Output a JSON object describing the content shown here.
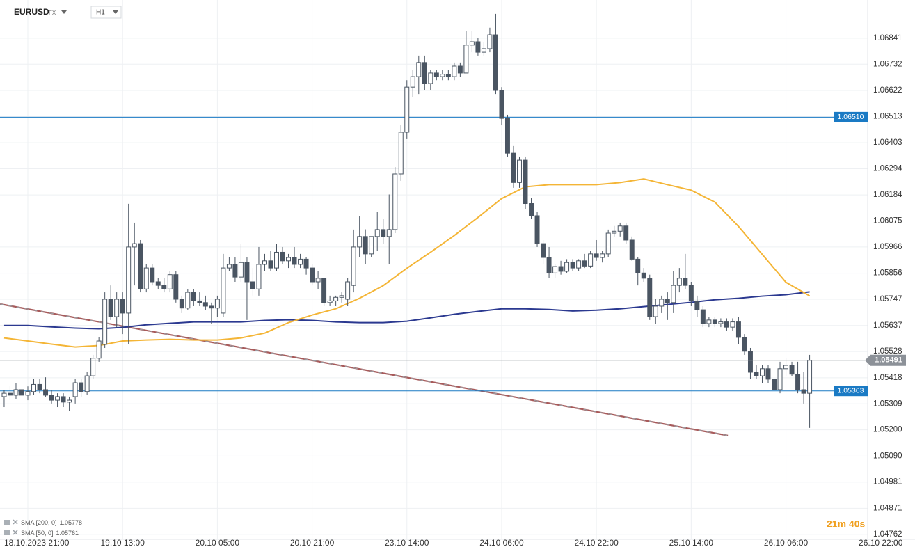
{
  "header": {
    "symbol": "EURUSD",
    "market": "FX",
    "timeframe": "H1"
  },
  "chart_data": {
    "type": "candlestick",
    "ohlc": [
      [
        1.05339,
        1.05368,
        1.05295,
        1.05353
      ],
      [
        1.05353,
        1.05382,
        1.05324,
        1.05345
      ],
      [
        1.05345,
        1.05397,
        1.0533,
        1.05368
      ],
      [
        1.05368,
        1.0539,
        1.0533,
        1.05345
      ],
      [
        1.05345,
        1.05382,
        1.05324,
        1.0536
      ],
      [
        1.0536,
        1.05412,
        1.05345,
        1.0539
      ],
      [
        1.0539,
        1.05412,
        1.05353,
        1.05368
      ],
      [
        1.05368,
        1.0542,
        1.05339,
        1.05345
      ],
      [
        1.05345,
        1.05368,
        1.0531,
        1.05324
      ],
      [
        1.05324,
        1.05353,
        1.05295,
        1.05339
      ],
      [
        1.05339,
        1.05353,
        1.05295,
        1.05316
      ],
      [
        1.05316,
        1.05339,
        1.0528,
        1.05324
      ],
      [
        1.05339,
        1.05412,
        1.0531,
        1.05397
      ],
      [
        1.05397,
        1.05412,
        1.05339,
        1.0536
      ],
      [
        1.0536,
        1.05441,
        1.05345,
        1.05426
      ],
      [
        1.05426,
        1.05514,
        1.05412,
        1.055
      ],
      [
        1.055,
        1.05587,
        1.05485,
        1.05572
      ],
      [
        1.05558,
        1.05776,
        1.05543,
        1.05747
      ],
      [
        1.05747,
        1.05805,
        1.0566,
        1.05674
      ],
      [
        1.05674,
        1.05776,
        1.0563,
        1.05747
      ],
      [
        1.05747,
        1.05776,
        1.05601,
        1.05689
      ],
      [
        1.05689,
        1.06147,
        1.05558,
        1.05966
      ],
      [
        1.05966,
        1.06068,
        1.05805,
        1.0598
      ],
      [
        1.0598,
        1.05995,
        1.05776,
        1.0579
      ],
      [
        1.0579,
        1.05893,
        1.05776,
        1.05878
      ],
      [
        1.05878,
        1.05893,
        1.05805,
        1.0582
      ],
      [
        1.0582,
        1.05835,
        1.0579,
        1.05805
      ],
      [
        1.05805,
        1.05835,
        1.05776,
        1.0579
      ],
      [
        1.0579,
        1.05864,
        1.05776,
        1.0585
      ],
      [
        1.0585,
        1.05864,
        1.05733,
        1.05747
      ],
      [
        1.05747,
        1.05762,
        1.05689,
        1.0571
      ],
      [
        1.0571,
        1.0579,
        1.05703,
        1.05776
      ],
      [
        1.05776,
        1.0579,
        1.05718,
        1.0574
      ],
      [
        1.0574,
        1.05776,
        1.05718,
        1.05733
      ],
      [
        1.05733,
        1.05762,
        1.05703,
        1.05718
      ],
      [
        1.05718,
        1.05733,
        1.05645,
        1.0571
      ],
      [
        1.0571,
        1.05762,
        1.05674,
        1.05747
      ],
      [
        1.05689,
        1.05937,
        1.05674,
        1.05878
      ],
      [
        1.05878,
        1.05922,
        1.05864,
        1.05893
      ],
      [
        1.05893,
        1.05922,
        1.0582,
        1.0584
      ],
      [
        1.0584,
        1.0598,
        1.0582,
        1.05901
      ],
      [
        1.05901,
        1.05922,
        1.0566,
        1.0582
      ],
      [
        1.0582,
        1.05878,
        1.05762,
        1.0579
      ],
      [
        1.0579,
        1.05966,
        1.05762,
        1.05893
      ],
      [
        1.05893,
        1.05937,
        1.05864,
        1.05908
      ],
      [
        1.05908,
        1.05951,
        1.05864,
        1.05878
      ],
      [
        1.05878,
        1.0598,
        1.05864,
        1.05944
      ],
      [
        1.05944,
        1.05966,
        1.05893,
        1.05908
      ],
      [
        1.05908,
        1.05937,
        1.05878,
        1.05922
      ],
      [
        1.05922,
        1.05966,
        1.05878,
        1.05893
      ],
      [
        1.05893,
        1.05937,
        1.05878,
        1.05915
      ],
      [
        1.05915,
        1.05922,
        1.0585,
        1.05878
      ],
      [
        1.05878,
        1.05893,
        1.05805,
        1.0582
      ],
      [
        1.0582,
        1.05864,
        1.0579,
        1.05835
      ],
      [
        1.05835,
        1.05835,
        1.05718,
        1.05733
      ],
      [
        1.05733,
        1.05762,
        1.05718,
        1.0574
      ],
      [
        1.0574,
        1.05762,
        1.05718,
        1.05755
      ],
      [
        1.05755,
        1.05776,
        1.05733,
        1.05762
      ],
      [
        1.05747,
        1.05835,
        1.05718,
        1.0582
      ],
      [
        1.05805,
        1.06039,
        1.05776,
        1.05966
      ],
      [
        1.05966,
        1.06097,
        1.05922,
        1.0601
      ],
      [
        1.0601,
        1.0604,
        1.05893,
        1.05937
      ],
      [
        1.05937,
        1.0601,
        1.05922,
        1.0601
      ],
      [
        1.0601,
        1.06112,
        1.05951,
        1.06039
      ],
      [
        1.06039,
        1.06083,
        1.0598,
        1.0601
      ],
      [
        1.0601,
        1.06186,
        1.05893,
        1.06039
      ],
      [
        1.06039,
        1.06301,
        1.06024,
        1.06272
      ],
      [
        1.06272,
        1.06476,
        1.06243,
        1.06447
      ],
      [
        1.06447,
        1.06665,
        1.06418,
        1.06636
      ],
      [
        1.06636,
        1.06709,
        1.06593,
        1.0668
      ],
      [
        1.0668,
        1.06768,
        1.06607,
        1.06739
      ],
      [
        1.06739,
        1.06768,
        1.06622,
        1.06651
      ],
      [
        1.06651,
        1.06709,
        1.06622,
        1.06695
      ],
      [
        1.06695,
        1.06709,
        1.06665,
        1.0668
      ],
      [
        1.0668,
        1.06709,
        1.06665,
        1.0669
      ],
      [
        1.0669,
        1.06709,
        1.06665,
        1.0668
      ],
      [
        1.0668,
        1.06739,
        1.06665,
        1.06724
      ],
      [
        1.06724,
        1.06739,
        1.0668,
        1.06695
      ],
      [
        1.06695,
        1.0687,
        1.06695,
        1.06812
      ],
      [
        1.06812,
        1.0687,
        1.06782,
        1.06826
      ],
      [
        1.06826,
        1.06841,
        1.06768,
        1.06782
      ],
      [
        1.06782,
        1.06826,
        1.06768,
        1.06797
      ],
      [
        1.06797,
        1.06885,
        1.06782,
        1.06855
      ],
      [
        1.06855,
        1.06943,
        1.06607,
        1.06622
      ],
      [
        1.06622,
        1.06636,
        1.06476,
        1.06505
      ],
      [
        1.06505,
        1.0652,
        1.06345,
        1.06359
      ],
      [
        1.06359,
        1.06389,
        1.06214,
        1.06236
      ],
      [
        1.06236,
        1.06345,
        1.06214,
        1.0633
      ],
      [
        1.0633,
        1.06345,
        1.06126,
        1.06148
      ],
      [
        1.06148,
        1.0617,
        1.06083,
        1.06097
      ],
      [
        1.06097,
        1.06112,
        1.05966,
        1.0598
      ],
      [
        1.0598,
        1.05995,
        1.05893,
        1.05922
      ],
      [
        1.05922,
        1.05966,
        1.05835,
        1.05857
      ],
      [
        1.05857,
        1.05893,
        1.05835,
        1.05884
      ],
      [
        1.05884,
        1.05908,
        1.0585,
        1.05864
      ],
      [
        1.05864,
        1.05915,
        1.05857,
        1.05901
      ],
      [
        1.05901,
        1.05915,
        1.05864,
        1.05878
      ],
      [
        1.05878,
        1.05915,
        1.05864,
        1.05908
      ],
      [
        1.05908,
        1.05937,
        1.05878,
        1.05886
      ],
      [
        1.05886,
        1.05951,
        1.05878,
        1.05937
      ],
      [
        1.05937,
        1.05995,
        1.05908,
        1.05922
      ],
      [
        1.05922,
        1.05951,
        1.05901,
        1.05937
      ],
      [
        1.05937,
        1.06039,
        1.05922,
        1.06024
      ],
      [
        1.06024,
        1.06054,
        1.0601,
        1.06032
      ],
      [
        1.06032,
        1.06068,
        1.0601,
        1.06054
      ],
      [
        1.06054,
        1.06068,
        1.0598,
        1.05995
      ],
      [
        1.05995,
        1.0601,
        1.05908,
        1.05915
      ],
      [
        1.05915,
        1.05922,
        1.05805,
        1.05857
      ],
      [
        1.05857,
        1.05878,
        1.0582,
        1.05835
      ],
      [
        1.05835,
        1.0585,
        1.0566,
        1.05674
      ],
      [
        1.05674,
        1.05747,
        1.05645,
        1.05718
      ],
      [
        1.05718,
        1.05762,
        1.05689,
        1.05747
      ],
      [
        1.05747,
        1.05776,
        1.0566,
        1.05733
      ],
      [
        1.05733,
        1.05864,
        1.05689,
        1.05805
      ],
      [
        1.05805,
        1.05878,
        1.05776,
        1.05835
      ],
      [
        1.05835,
        1.05937,
        1.0579,
        1.05805
      ],
      [
        1.05805,
        1.0582,
        1.05718,
        1.0574
      ],
      [
        1.0574,
        1.05762,
        1.05674,
        1.05703
      ],
      [
        1.05703,
        1.05718,
        1.0563,
        1.05645
      ],
      [
        1.05645,
        1.05674,
        1.0563,
        1.0566
      ],
      [
        1.0566,
        1.05674,
        1.0563,
        1.05645
      ],
      [
        1.05645,
        1.05667,
        1.0563,
        1.05652
      ],
      [
        1.05652,
        1.05667,
        1.05616,
        1.0563
      ],
      [
        1.0563,
        1.05667,
        1.05616,
        1.05652
      ],
      [
        1.05652,
        1.05674,
        1.05558,
        1.05587
      ],
      [
        1.05587,
        1.05601,
        1.05514,
        1.05529
      ],
      [
        1.05529,
        1.05543,
        1.05412,
        1.05441
      ],
      [
        1.05441,
        1.0547,
        1.05412,
        1.05426
      ],
      [
        1.05426,
        1.0547,
        1.05397,
        1.05456
      ],
      [
        1.05456,
        1.0547,
        1.05397,
        1.05412
      ],
      [
        1.05412,
        1.05426,
        1.05324,
        1.05368
      ],
      [
        1.05368,
        1.05485,
        1.05353,
        1.05456
      ],
      [
        1.05456,
        1.055,
        1.05426,
        1.0547
      ],
      [
        1.0547,
        1.05485,
        1.05426,
        1.05433
      ],
      [
        1.05433,
        1.05485,
        1.05353,
        1.05368
      ],
      [
        1.05368,
        1.05441,
        1.0531,
        1.05353
      ],
      [
        1.05353,
        1.05514,
        1.05208,
        1.05491
      ]
    ],
    "bull_color": "#ffffff",
    "bear_color": "#4a5562",
    "xlim": [
      -0.7,
      145.8
    ],
    "xticks": [
      {
        "value": 4,
        "label": "18.10.2023 21:00"
      },
      {
        "value": 20,
        "label": "19.10 13:00"
      },
      {
        "value": 36,
        "label": "20.10 05:00"
      },
      {
        "value": 52,
        "label": "20.10 21:00"
      },
      {
        "value": 68,
        "label": "23.10 14:00"
      },
      {
        "value": 84,
        "label": "24.10 06:00"
      },
      {
        "value": 100,
        "label": "24.10 22:00"
      },
      {
        "value": 116,
        "label": "25.10 14:00"
      },
      {
        "value": 132,
        "label": "26.10 06:00"
      },
      {
        "value": 148,
        "label": "26.10 22:00"
      }
    ],
    "ylim": [
      1.04741,
      1.07001
    ],
    "yticks": [
      1.06841,
      1.06732,
      1.06622,
      1.06513,
      1.06403,
      1.06294,
      1.06184,
      1.06075,
      1.05966,
      1.05856,
      1.05747,
      1.05637,
      1.05528,
      1.05418,
      1.05309,
      {
        "value": 1.052,
        "label": "1.05200"
      },
      {
        "value": 1.0509,
        "label": "1.05090"
      },
      1.04981,
      1.04871,
      1.04762
    ],
    "grid": true,
    "series": [
      {
        "name": "SMA [200, 0]",
        "color": "#2b3990",
        "x": [
          0,
          4,
          8,
          12,
          16,
          20,
          24,
          28,
          32,
          36,
          40,
          44,
          48,
          52,
          56,
          60,
          64,
          68,
          72,
          76,
          80,
          84,
          88,
          92,
          96,
          100,
          104,
          108,
          112,
          116,
          120,
          124,
          128,
          132,
          136
        ],
        "values": [
          1.05637,
          1.05637,
          1.05631,
          1.05626,
          1.05623,
          1.05629,
          1.0564,
          1.05646,
          1.05652,
          1.05652,
          1.05652,
          1.05658,
          1.05661,
          1.05658,
          1.05652,
          1.05649,
          1.05649,
          1.05655,
          1.05669,
          1.05684,
          1.05696,
          1.05707,
          1.05707,
          1.05704,
          1.05698,
          1.05701,
          1.05707,
          1.05716,
          1.05725,
          1.05734,
          1.05745,
          1.05751,
          1.0576,
          1.05766,
          1.05778
        ]
      },
      {
        "name": "SMA [50, 0]",
        "color": "#f4b536",
        "x": [
          0,
          4,
          8,
          12,
          16,
          20,
          24,
          28,
          32,
          36,
          40,
          44,
          48,
          52,
          56,
          60,
          64,
          68,
          72,
          76,
          80,
          84,
          88,
          92,
          96,
          100,
          104,
          108,
          112,
          116,
          120,
          124,
          128,
          132,
          136
        ],
        "values": [
          1.05585,
          1.05572,
          1.05559,
          1.05547,
          1.05553,
          1.05572,
          1.05576,
          1.05579,
          1.05576,
          1.05576,
          1.05585,
          1.05605,
          1.05649,
          1.05681,
          1.05707,
          1.05751,
          1.05804,
          1.05877,
          1.05944,
          1.06014,
          1.0609,
          1.06169,
          1.06218,
          1.06227,
          1.06227,
          1.06227,
          1.06236,
          1.06251,
          1.06227,
          1.06204,
          1.06154,
          1.06052,
          1.05935,
          1.05818,
          1.05761
        ]
      }
    ],
    "levels": [
      {
        "value": 1.0651,
        "label": "1.06510"
      },
      1.05363
    ],
    "level_color": "#1a7ac4",
    "current_price": 1.05491,
    "current_color": "#8c9198",
    "trendline": {
      "x": [
        -0.7,
        122.2
      ],
      "values": [
        1.05727,
        1.05176
      ],
      "color": "#a85a5a"
    },
    "countdown": "21m 40s"
  }
}
